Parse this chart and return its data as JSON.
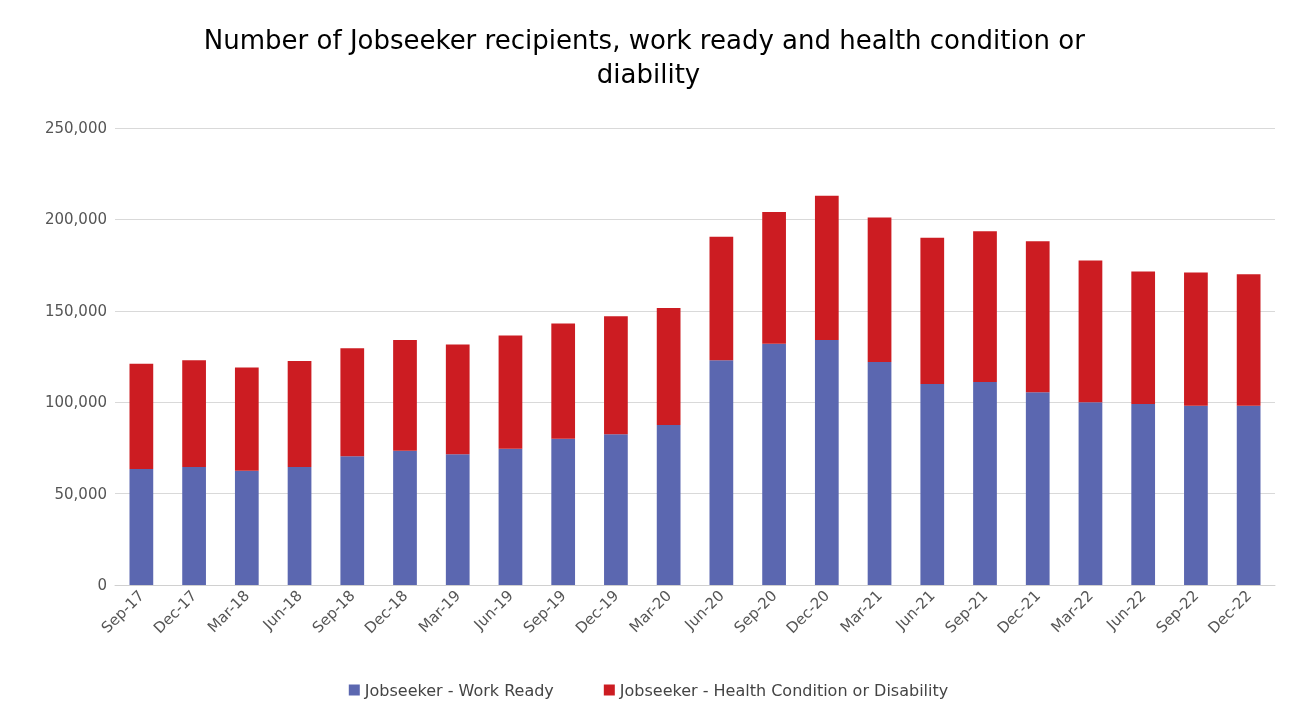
{
  "chart_data": {
    "type": "bar",
    "title": "Number of Jobseeker recipients, work ready and health condition or diability",
    "categories": [
      "Sep-17",
      "Dec-17",
      "Mar-18",
      "Jun-18",
      "Sep-18",
      "Dec-18",
      "Mar-19",
      "Jun-19",
      "Sep-19",
      "Dec-19",
      "Mar-20",
      "Jun-20",
      "Sep-20",
      "Dec-20",
      "Mar-21",
      "Jun-21",
      "Sep-21",
      "Dec-21",
      "Mar-22",
      "Jun-22",
      "Sep-22",
      "Dec-22"
    ],
    "series": [
      {
        "name": "Jobseeker - Work Ready",
        "color": "#5b67b0",
        "values": [
          63500,
          64500,
          62500,
          64500,
          70500,
          73500,
          71500,
          74500,
          80000,
          82500,
          87500,
          123000,
          132000,
          134000,
          122000,
          110000,
          111000,
          105500,
          100000,
          99000,
          98000,
          98000
        ]
      },
      {
        "name": "Jobseeker - Health Condition or Disability",
        "color": "#cc1c22",
        "values": [
          57500,
          58500,
          56500,
          58000,
          59000,
          60500,
          60000,
          62000,
          63000,
          64500,
          64000,
          67500,
          72000,
          79000,
          79000,
          80000,
          82500,
          82500,
          77500,
          72500,
          73000,
          72000
        ]
      }
    ],
    "stacked": true,
    "ylim": [
      0,
      250000
    ],
    "yticks": [
      0,
      {
        "value": 50000,
        "label": "50,000"
      },
      {
        "value": 100000,
        "label": "100,000"
      },
      {
        "value": 150000,
        "label": "150,000"
      },
      {
        "value": 200000,
        "label": "200,000"
      },
      {
        "value": 250000,
        "label": "250,000"
      }
    ],
    "grid": "y",
    "legend": "bottom"
  }
}
